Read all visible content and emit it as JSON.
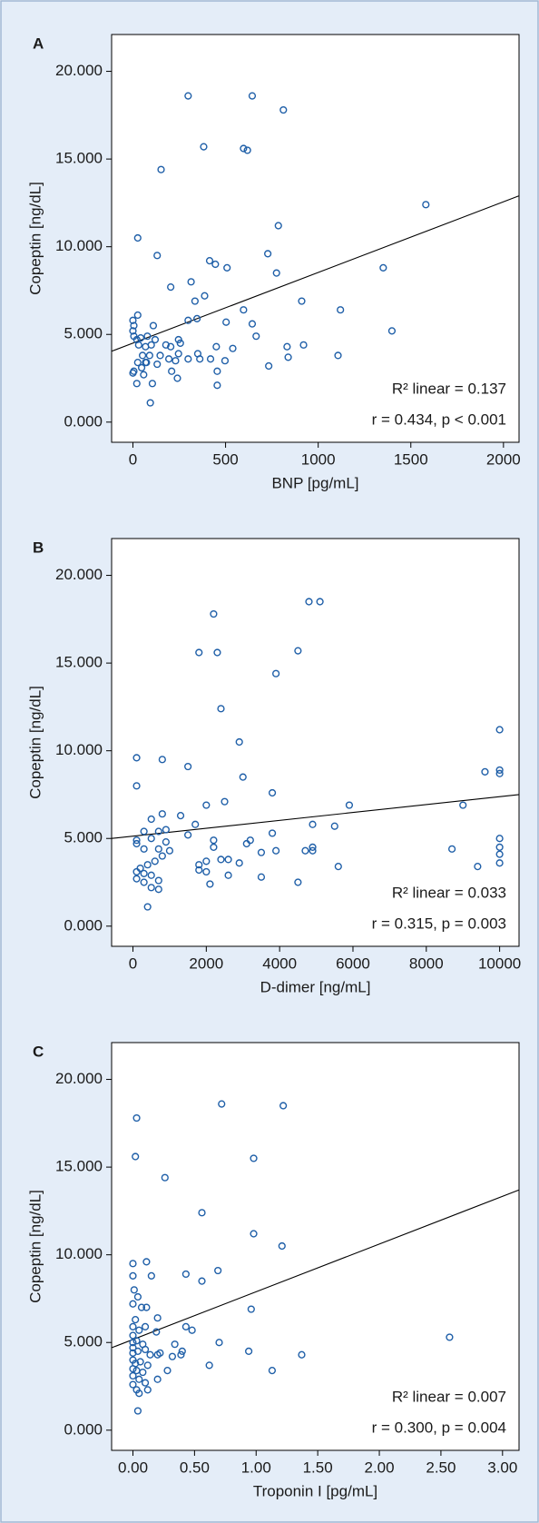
{
  "chart_data": [
    {
      "type": "scatter",
      "panel_label": "A",
      "x_label": "BNP [pg/mL]",
      "y_label": "Copeptin [ng/dL]",
      "color": "#1f5fa8",
      "x": [
        298,
        644,
        812,
        382,
        597,
        618,
        152,
        1581,
        785,
        26,
        131,
        414,
        445,
        508,
        728,
        1351,
        775,
        314,
        204,
        387,
        335,
        911,
        597,
        1120,
        26,
        0,
        5,
        298,
        346,
        503,
        644,
        110,
        1398,
        0,
        5,
        21,
        42,
        78,
        120,
        31,
        68,
        99,
        539,
        450,
        665,
        832,
        921,
        246,
        178,
        204,
        256,
        194,
        230,
        298,
        361,
        419,
        497,
        68,
        131,
        26,
        47,
        73,
        5,
        0,
        58,
        209,
        240,
        455,
        733,
        1107,
        838,
        455,
        21,
        105,
        94,
        246,
        350,
        147,
        90,
        52
      ],
      "y": [
        18.6,
        18.6,
        17.8,
        15.7,
        15.6,
        15.5,
        14.4,
        12.4,
        11.2,
        10.5,
        9.5,
        9.2,
        9.0,
        8.8,
        9.6,
        8.8,
        8.5,
        8.0,
        7.7,
        7.2,
        6.9,
        6.9,
        6.4,
        6.4,
        6.1,
        5.8,
        5.5,
        5.8,
        5.9,
        5.7,
        5.6,
        5.5,
        5.2,
        5.2,
        4.9,
        4.7,
        4.8,
        4.9,
        4.7,
        4.4,
        4.3,
        4.4,
        4.2,
        4.3,
        4.9,
        4.3,
        4.4,
        4.7,
        4.4,
        4.3,
        4.5,
        3.6,
        3.5,
        3.6,
        3.6,
        3.6,
        3.5,
        3.4,
        3.3,
        3.4,
        3.1,
        3.4,
        2.9,
        2.8,
        2.7,
        2.9,
        2.5,
        2.9,
        3.2,
        3.8,
        3.7,
        2.1,
        2.2,
        2.2,
        1.1,
        3.9,
        3.9,
        3.8,
        3.8,
        3.8
      ],
      "fit": {
        "x": [
          -115,
          2084
        ],
        "y": [
          4.04,
          12.9
        ],
        "color": "#000000"
      },
      "xlim": [
        -115,
        2084
      ],
      "ylim": [
        -1.15,
        22.1
      ],
      "xticks": [
        0,
        500,
        1000,
        1500,
        2000
      ],
      "yticks": [
        {
          "value": 0,
          "label": "0.000"
        },
        {
          "value": 5,
          "label": "5.000"
        },
        {
          "value": 10,
          "label": "10.000"
        },
        {
          "value": 15,
          "label": "15.000"
        },
        {
          "value": 20,
          "label": "20.000"
        }
      ],
      "annotations": [
        "R² linear = 0.137",
        "r = 0.434, p < 0.001"
      ]
    },
    {
      "type": "scatter",
      "panel_label": "B",
      "x_label": "D-dimer [ng/mL]",
      "y_label": "Copeptin [ng/dL]",
      "color": "#1f5fa8",
      "x": [
        4800,
        5100,
        2200,
        1800,
        2300,
        4500,
        3900,
        2400,
        10000,
        2900,
        100,
        800,
        1500,
        9600,
        10000,
        10000,
        100,
        3000,
        3800,
        2500,
        2000,
        5900,
        9000,
        800,
        1300,
        500,
        4900,
        5500,
        1700,
        300,
        700,
        900,
        3200,
        2200,
        1500,
        3800,
        100,
        500,
        900,
        10000,
        2200,
        3100,
        3500,
        4700,
        4900,
        4900,
        8700,
        10000,
        10000,
        3900,
        300,
        700,
        1000,
        100,
        1800,
        2000,
        2400,
        2600,
        2900,
        200,
        400,
        600,
        800,
        100,
        300,
        10000,
        9400,
        5600,
        1800,
        2000,
        2600,
        3500,
        4500,
        500,
        700,
        100,
        300,
        2100,
        500,
        700,
        400
      ],
      "y": [
        18.5,
        18.5,
        17.8,
        15.6,
        15.6,
        15.7,
        14.4,
        12.4,
        11.2,
        10.5,
        9.6,
        9.5,
        9.1,
        8.8,
        8.9,
        8.7,
        8.0,
        8.5,
        7.6,
        7.1,
        6.9,
        6.9,
        6.9,
        6.4,
        6.3,
        6.1,
        5.8,
        5.7,
        5.8,
        5.4,
        5.4,
        5.5,
        4.9,
        4.9,
        5.2,
        5.3,
        4.9,
        5.0,
        4.8,
        5.0,
        4.5,
        4.7,
        4.2,
        4.3,
        4.3,
        4.5,
        4.4,
        4.5,
        4.1,
        4.3,
        4.4,
        4.4,
        4.3,
        4.7,
        3.5,
        3.7,
        3.8,
        3.8,
        3.6,
        3.3,
        3.5,
        3.7,
        4.0,
        3.1,
        3.0,
        3.6,
        3.4,
        3.4,
        3.2,
        3.1,
        2.9,
        2.8,
        2.5,
        2.9,
        2.6,
        2.7,
        2.5,
        2.4,
        2.2,
        2.1,
        1.1
      ],
      "fit": {
        "x": [
          -582,
          10529
        ],
        "y": [
          5.0,
          7.5
        ],
        "color": "#000000"
      },
      "xlim": [
        -582,
        10529
      ],
      "ylim": [
        -1.15,
        22.1
      ],
      "xticks": [
        0,
        2000,
        4000,
        6000,
        8000,
        10000
      ],
      "yticks": [
        {
          "value": 0,
          "label": "0.000"
        },
        {
          "value": 5,
          "label": "5.000"
        },
        {
          "value": 10,
          "label": "10.000"
        },
        {
          "value": 15,
          "label": "15.000"
        },
        {
          "value": 20,
          "label": "20.000"
        }
      ],
      "annotations": [
        "R² linear = 0.033",
        "r = 0.315, p = 0.003"
      ]
    },
    {
      "type": "scatter",
      "panel_label": "C",
      "x_label": "Troponin I [pg/mL]",
      "y_label": "Copeptin [ng/dL]",
      "color": "#1f5fa8",
      "x": [
        0.72,
        1.22,
        0.03,
        0.02,
        0.98,
        0.26,
        0.56,
        0.98,
        1.21,
        0,
        0.11,
        0,
        0.15,
        0.43,
        0.69,
        0.56,
        0.01,
        0.04,
        0.07,
        0.11,
        0,
        0.96,
        0.2,
        0.02,
        0,
        0.05,
        0.1,
        0.19,
        0.43,
        0.48,
        2.57,
        0,
        0,
        0.03,
        0.08,
        0.34,
        0.7,
        0,
        0,
        0.04,
        0.1,
        0.14,
        0.2,
        0.22,
        0.32,
        0.39,
        0.4,
        0.94,
        1.37,
        0,
        0.02,
        0.06,
        0.12,
        0.62,
        0,
        0.03,
        0.08,
        0.28,
        1.13,
        0,
        0.05,
        0.1,
        0.2,
        0,
        0.03,
        0.12,
        0.05,
        0.04
      ],
      "y": [
        18.6,
        18.5,
        17.8,
        15.6,
        15.5,
        14.4,
        12.4,
        11.2,
        10.5,
        9.5,
        9.6,
        8.8,
        8.8,
        8.9,
        9.1,
        8.5,
        8.0,
        7.6,
        7.0,
        7.0,
        7.2,
        6.9,
        6.4,
        6.3,
        5.9,
        5.7,
        5.9,
        5.6,
        5.9,
        5.7,
        5.3,
        5.4,
        5.0,
        5.1,
        4.9,
        4.9,
        5.0,
        4.7,
        4.4,
        4.5,
        4.6,
        4.3,
        4.3,
        4.4,
        4.2,
        4.3,
        4.5,
        4.5,
        4.3,
        4.0,
        3.8,
        3.9,
        3.7,
        3.7,
        3.5,
        3.4,
        3.3,
        3.4,
        3.4,
        3.1,
        2.9,
        2.7,
        2.9,
        2.6,
        2.3,
        2.3,
        2.1,
        1.1
      ],
      "fit": {
        "x": [
          -0.173,
          3.134
        ],
        "y": [
          4.7,
          13.7
        ],
        "color": "#000000"
      },
      "xlim": [
        -0.173,
        3.134
      ],
      "ylim": [
        -1.15,
        22.1
      ],
      "xticks": [
        {
          "value": 0,
          "label": "0.00"
        },
        {
          "value": 0.5,
          "label": "0.50"
        },
        {
          "value": 1,
          "label": "1.00"
        },
        {
          "value": 1.5,
          "label": "1.50"
        },
        {
          "value": 2,
          "label": "2.00"
        },
        {
          "value": 2.5,
          "label": "2.50"
        },
        {
          "value": 3,
          "label": "3.00"
        }
      ],
      "yticks": [
        {
          "value": 0,
          "label": "0.000"
        },
        {
          "value": 5,
          "label": "5.000"
        },
        {
          "value": 10,
          "label": "10.000"
        },
        {
          "value": 15,
          "label": "15.000"
        },
        {
          "value": 20,
          "label": "20.000"
        }
      ],
      "annotations": [
        "R² linear = 0.007",
        "r = 0.300, p = 0.004"
      ]
    }
  ]
}
